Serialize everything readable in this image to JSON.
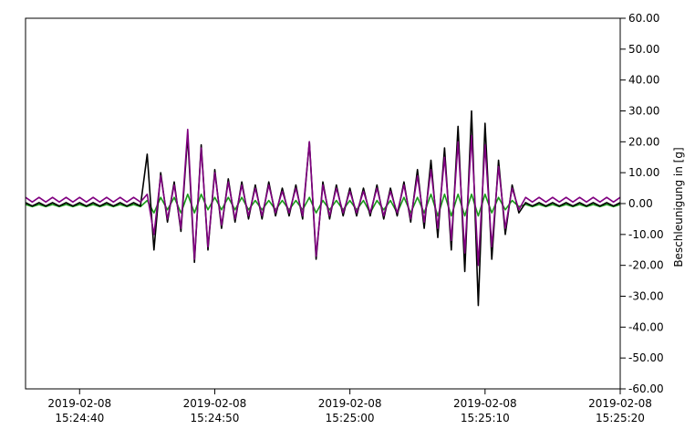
{
  "chart_data": {
    "type": "line",
    "y_label": "Beschleunigung in [g]",
    "x": [
      "2019-02-08 15:24:36.0",
      "2019-02-08 15:24:36.5",
      "2019-02-08 15:24:37.0",
      "2019-02-08 15:24:37.5",
      "2019-02-08 15:24:38.0",
      "2019-02-08 15:24:38.5",
      "2019-02-08 15:24:39.0",
      "2019-02-08 15:24:39.5",
      "2019-02-08 15:24:40.0",
      "2019-02-08 15:24:40.5",
      "2019-02-08 15:24:41.0",
      "2019-02-08 15:24:41.5",
      "2019-02-08 15:24:42.0",
      "2019-02-08 15:24:42.5",
      "2019-02-08 15:24:43.0",
      "2019-02-08 15:24:43.5",
      "2019-02-08 15:24:44.0",
      "2019-02-08 15:24:44.5",
      "2019-02-08 15:24:45.0",
      "2019-02-08 15:24:45.5",
      "2019-02-08 15:24:46.0",
      "2019-02-08 15:24:46.5",
      "2019-02-08 15:24:47.0",
      "2019-02-08 15:24:47.5",
      "2019-02-08 15:24:48.0",
      "2019-02-08 15:24:48.5",
      "2019-02-08 15:24:49.0",
      "2019-02-08 15:24:49.5",
      "2019-02-08 15:24:50.0",
      "2019-02-08 15:24:50.5",
      "2019-02-08 15:24:51.0",
      "2019-02-08 15:24:51.5",
      "2019-02-08 15:24:52.0",
      "2019-02-08 15:24:52.5",
      "2019-02-08 15:24:53.0",
      "2019-02-08 15:24:53.5",
      "2019-02-08 15:24:54.0",
      "2019-02-08 15:24:54.5",
      "2019-02-08 15:24:55.0",
      "2019-02-08 15:24:55.5",
      "2019-02-08 15:24:56.0",
      "2019-02-08 15:24:56.5",
      "2019-02-08 15:24:57.0",
      "2019-02-08 15:24:57.5",
      "2019-02-08 15:24:58.0",
      "2019-02-08 15:24:58.5",
      "2019-02-08 15:24:59.0",
      "2019-02-08 15:24:59.5",
      "2019-02-08 15:25:00.0",
      "2019-02-08 15:25:00.5",
      "2019-02-08 15:25:01.0",
      "2019-02-08 15:25:01.5",
      "2019-02-08 15:25:02.0",
      "2019-02-08 15:25:02.5",
      "2019-02-08 15:25:03.0",
      "2019-02-08 15:25:03.5",
      "2019-02-08 15:25:04.0",
      "2019-02-08 15:25:04.5",
      "2019-02-08 15:25:05.0",
      "2019-02-08 15:25:05.5",
      "2019-02-08 15:25:06.0",
      "2019-02-08 15:25:06.5",
      "2019-02-08 15:25:07.0",
      "2019-02-08 15:25:07.5",
      "2019-02-08 15:25:08.0",
      "2019-02-08 15:25:08.5",
      "2019-02-08 15:25:09.0",
      "2019-02-08 15:25:09.5",
      "2019-02-08 15:25:10.0",
      "2019-02-08 15:25:10.5",
      "2019-02-08 15:25:11.0",
      "2019-02-08 15:25:11.5",
      "2019-02-08 15:25:12.0",
      "2019-02-08 15:25:12.5",
      "2019-02-08 15:25:13.0",
      "2019-02-08 15:25:13.5",
      "2019-02-08 15:25:14.0",
      "2019-02-08 15:25:14.5",
      "2019-02-08 15:25:15.0",
      "2019-02-08 15:25:15.5",
      "2019-02-08 15:25:16.0",
      "2019-02-08 15:25:16.5",
      "2019-02-08 15:25:17.0",
      "2019-02-08 15:25:17.5",
      "2019-02-08 15:25:18.0",
      "2019-02-08 15:25:18.5",
      "2019-02-08 15:25:19.0",
      "2019-02-08 15:25:19.5",
      "2019-02-08 15:25:20.0"
    ],
    "series": [
      {
        "color": "#1a9a1a",
        "values": [
          -0.3,
          -1.0,
          -0.3,
          -1.0,
          -0.3,
          -1.0,
          -0.3,
          -1.0,
          -0.3,
          -1.0,
          -0.3,
          -1.0,
          -0.3,
          -1.0,
          -0.3,
          -1.0,
          -0.3,
          -1.0,
          1,
          -3,
          2,
          -2,
          2,
          -3,
          3,
          -3,
          3,
          -2,
          2,
          -2,
          2,
          -2,
          2,
          -2,
          1,
          -2,
          1,
          -2,
          1,
          -2,
          1,
          -2,
          2,
          -3,
          1,
          -2,
          1,
          -2,
          1,
          -2,
          1,
          -3,
          1,
          -2,
          1,
          -3,
          2,
          -3,
          2,
          -3,
          3,
          -4,
          3,
          -4,
          3,
          -4,
          3,
          -4,
          3,
          -3,
          2,
          -2,
          1,
          -1,
          -0.3,
          -1.0,
          -0.3,
          -1.0,
          -0.3,
          -1.0,
          -0.3,
          -1.0,
          -0.3,
          -1.0,
          -0.3,
          -1.0,
          -0.3,
          -1.0,
          -0.3
        ]
      },
      {
        "color": "#000000",
        "values": [
          0.3,
          -0.8,
          0.3,
          -0.8,
          0.3,
          -0.8,
          0.3,
          -0.8,
          0.3,
          -0.8,
          0.3,
          -0.8,
          0.3,
          -0.8,
          0.3,
          -0.8,
          0.3,
          -0.8,
          16,
          -15,
          10,
          -6,
          7,
          -9,
          22,
          -19,
          19,
          -15,
          11,
          -8,
          8,
          -6,
          7,
          -5,
          6,
          -5,
          7,
          -4,
          5,
          -4,
          6,
          -5,
          20,
          -18,
          7,
          -5,
          6,
          -4,
          5,
          -4,
          5,
          -4,
          6,
          -5,
          5,
          -4,
          7,
          -6,
          11,
          -8,
          14,
          -11,
          18,
          -15,
          25,
          -22,
          30,
          -33,
          26,
          -18,
          14,
          -10,
          6,
          -3,
          0.3,
          -0.8,
          0.3,
          -0.8,
          0.3,
          -0.8,
          0.3,
          -0.8,
          0.3,
          -0.8,
          0.3,
          -0.8,
          0.3,
          -0.8,
          0.3
        ]
      },
      {
        "color": "#800080",
        "values": [
          2,
          0.5,
          2,
          0.5,
          2,
          0.5,
          2,
          0.5,
          2,
          0.5,
          2,
          0.5,
          2,
          0.5,
          2,
          0.5,
          2,
          0.5,
          3,
          -10,
          9,
          -5,
          6,
          -8,
          24,
          -18,
          18,
          -14,
          10,
          -7,
          7,
          -5,
          6,
          -4,
          5,
          -4,
          6,
          -3,
          4,
          -3,
          5,
          -4,
          20,
          -17,
          6,
          -4,
          5,
          -3,
          4,
          -3,
          4,
          -3,
          5,
          -4,
          4,
          -3,
          6,
          -5,
          9,
          -6,
          11,
          -8,
          15,
          -12,
          20,
          -16,
          22,
          -20,
          19,
          -14,
          12,
          -8,
          5,
          -2,
          2,
          0.5,
          2,
          0.5,
          2,
          0.5,
          2,
          0.5,
          2,
          0.5,
          2,
          0.5,
          2,
          0.5,
          2
        ]
      }
    ],
    "xlim": [
      "2019-02-08 15:24:36.0",
      "2019-02-08 15:25:20.0"
    ],
    "xticks": [
      "2019-02-08 15:24:40",
      "2019-02-08 15:24:50",
      "2019-02-08 15:25:00",
      "2019-02-08 15:25:10",
      "2019-02-08 15:25:20"
    ],
    "ylim": [
      -60,
      60
    ],
    "yticks": [
      {
        "value": 60,
        "label": "60.00"
      },
      {
        "value": 50,
        "label": "50.00"
      },
      {
        "value": 40,
        "label": "40.00"
      },
      {
        "value": 30,
        "label": "30.00"
      },
      {
        "value": 20,
        "label": "20.00"
      },
      {
        "value": 10,
        "label": "10.00"
      },
      {
        "value": 0,
        "label": "0.00"
      },
      {
        "value": -10,
        "label": "-10.00"
      },
      {
        "value": -20,
        "label": "-20.00"
      },
      {
        "value": -30,
        "label": "-30.00"
      },
      {
        "value": -40,
        "label": "-40.00"
      },
      {
        "value": -50,
        "label": "-50.00"
      },
      {
        "value": -60,
        "label": "-60.00"
      }
    ],
    "y_axis_side": "right"
  }
}
